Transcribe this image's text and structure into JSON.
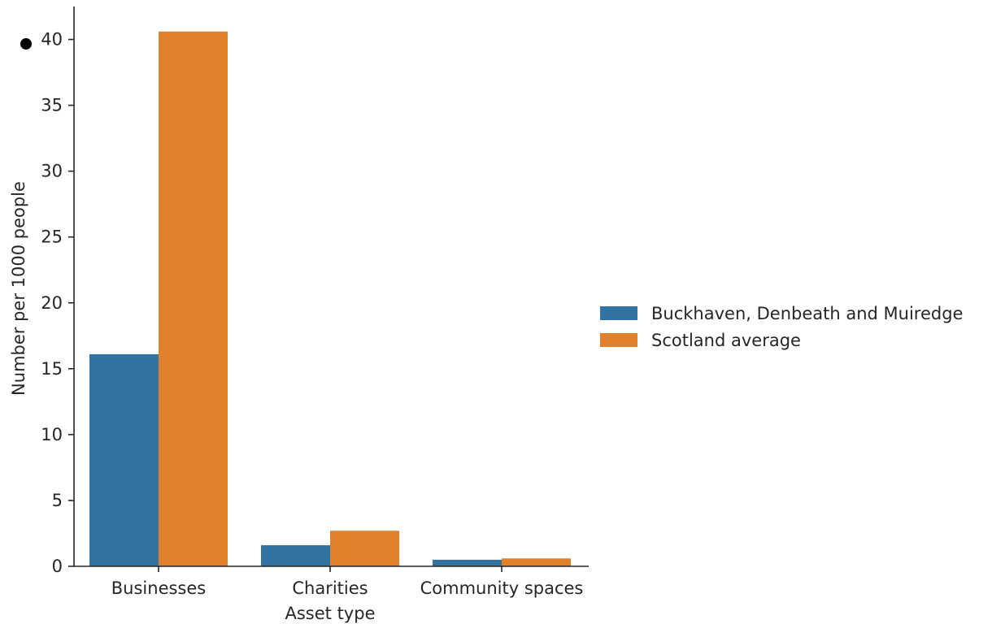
{
  "chart_data": {
    "type": "bar",
    "categories": [
      "Businesses",
      "Charities",
      "Community spaces"
    ],
    "series": [
      {
        "name": "Buckhaven, Denbeath and Muiredge",
        "color": "#3274a1",
        "values": [
          16.1,
          1.6,
          0.5
        ]
      },
      {
        "name": "Scotland average",
        "color": "#e1812c",
        "values": [
          40.6,
          2.7,
          0.6
        ]
      }
    ],
    "xlabel": "Asset type",
    "ylabel": "Number per 1000 people",
    "ylim": [
      0,
      42.5
    ],
    "yticks": [
      "0",
      "5",
      "10",
      "15",
      "20",
      "25",
      "30",
      "35",
      "40"
    ],
    "grid": false,
    "legend_position": "right"
  }
}
